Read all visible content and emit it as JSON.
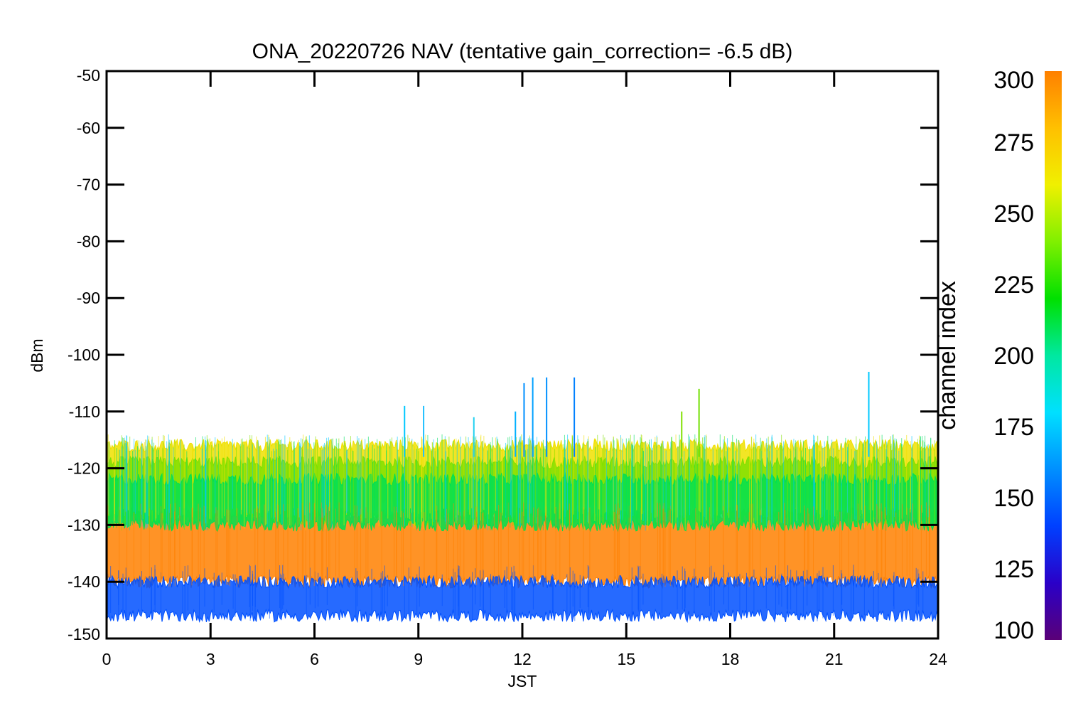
{
  "chart_data": {
    "type": "line",
    "title": "ONA_20220726 NAV (tentative gain_correction= -6.5 dB)",
    "xlabel": "JST",
    "ylabel": "dBm",
    "xlim": [
      0,
      24
    ],
    "ylim": [
      -150,
      -50
    ],
    "xticks": [
      "0",
      "3",
      "6",
      "9",
      "12",
      "15",
      "18",
      "21",
      "24"
    ],
    "yticks": [
      "-50",
      "-60",
      "-70",
      "-80",
      "-90",
      "-100",
      "-110",
      "-120",
      "-130",
      "-140",
      "-150"
    ],
    "colorbar": {
      "label": "channel index",
      "range": [
        100,
        300
      ],
      "ticks": [
        "300",
        "275",
        "250",
        "225",
        "200",
        "175",
        "150",
        "125",
        "100"
      ],
      "colors": [
        "#5a0078",
        "#2a00c8",
        "#0040ff",
        "#0090ff",
        "#00e0ff",
        "#00e8a0",
        "#00e000",
        "#80f000",
        "#f0f000",
        "#ffc000",
        "#ff8000"
      ]
    },
    "bands": [
      {
        "name": "channel 300",
        "color": "#ff8000",
        "center": -134,
        "halfwidth": 6
      },
      {
        "name": "channel 275",
        "color": "#f0e000",
        "center": -121,
        "halfwidth": 5
      },
      {
        "name": "channel 250",
        "color": "#80e000",
        "center": -124,
        "halfwidth": 5
      },
      {
        "name": "channel 220",
        "color": "#00e050",
        "center": -126,
        "halfwidth": 4
      },
      {
        "name": "channel 150",
        "color": "#0050ff",
        "center": -143,
        "halfwidth": 3
      }
    ],
    "spikes": [
      {
        "x": 8.6,
        "y": -109,
        "color": "#00c8ff"
      },
      {
        "x": 9.15,
        "y": -109,
        "color": "#20c0ff"
      },
      {
        "x": 10.6,
        "y": -111,
        "color": "#20d0f0"
      },
      {
        "x": 11.8,
        "y": -110,
        "color": "#00b0ff"
      },
      {
        "x": 12.05,
        "y": -105,
        "color": "#0090ff"
      },
      {
        "x": 12.3,
        "y": -104,
        "color": "#00a0ff"
      },
      {
        "x": 12.7,
        "y": -104,
        "color": "#0090ff"
      },
      {
        "x": 13.5,
        "y": -104,
        "color": "#0080ff"
      },
      {
        "x": 16.6,
        "y": -110,
        "color": "#80e000"
      },
      {
        "x": 17.1,
        "y": -106,
        "color": "#70e000"
      },
      {
        "x": 22.0,
        "y": -103,
        "color": "#00c8ff"
      }
    ]
  }
}
